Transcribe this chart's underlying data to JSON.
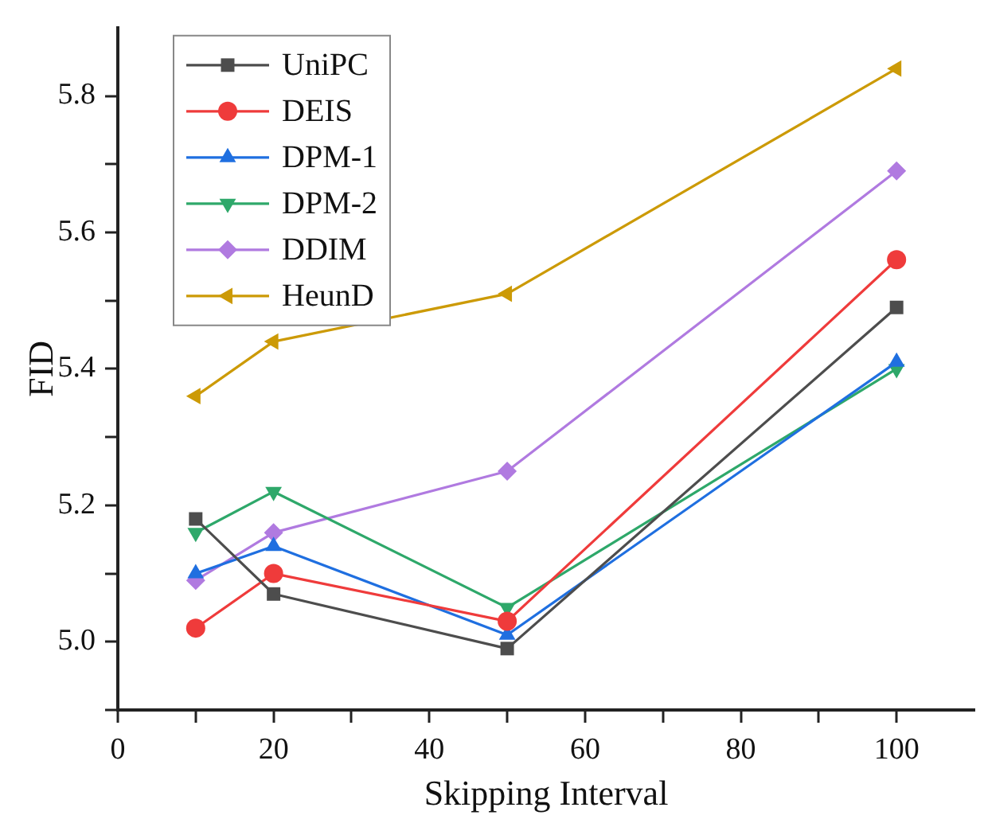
{
  "chart_data": {
    "type": "line",
    "xlabel": "Skipping Interval",
    "ylabel": "FID",
    "x": [
      10,
      20,
      50,
      100
    ],
    "xlim": [
      0,
      110
    ],
    "xticks": [
      0,
      {
        "value": 10,
        "label": null
      },
      20,
      {
        "value": 30,
        "label": null
      },
      40,
      {
        "value": 50,
        "label": null
      },
      60,
      {
        "value": 70,
        "label": null
      },
      80,
      {
        "value": 90,
        "label": null
      },
      100
    ],
    "ylim": [
      4.9,
      5.9
    ],
    "yticks": [
      {
        "value": 4.9,
        "label": null
      },
      "5.0",
      {
        "value": 5.1,
        "label": null
      },
      5.2,
      {
        "value": 5.3,
        "label": null
      },
      5.4,
      {
        "value": 5.5,
        "label": null
      },
      5.6,
      {
        "value": 5.7,
        "label": null
      },
      5.8
    ],
    "grid": false,
    "legend": "top left",
    "line_style": "solid",
    "series": [
      {
        "name": "UniPC",
        "color": "#4d4d4d",
        "marker": "square",
        "values": [
          5.18,
          5.07,
          4.99,
          5.49
        ]
      },
      {
        "name": "DEIS",
        "color": "#ef3b3b",
        "marker": "circle",
        "values": [
          5.02,
          5.1,
          5.03,
          5.56
        ]
      },
      {
        "name": "DPM-1",
        "color": "#1f6fe0",
        "marker": "triangle",
        "values": [
          5.1,
          5.14,
          5.01,
          5.41
        ]
      },
      {
        "name": "DPM-2",
        "color": "#2ea86a",
        "marker": "triangle-down",
        "values": [
          5.16,
          5.22,
          5.05,
          5.4
        ]
      },
      {
        "name": "DDIM",
        "color": "#b07ae0",
        "marker": "diamond",
        "values": [
          5.09,
          5.16,
          5.25,
          5.69
        ]
      },
      {
        "name": "HeunD",
        "color": "#cc9a06",
        "marker": "triangle-left",
        "values": [
          5.36,
          5.44,
          5.51,
          5.84
        ]
      }
    ]
  }
}
